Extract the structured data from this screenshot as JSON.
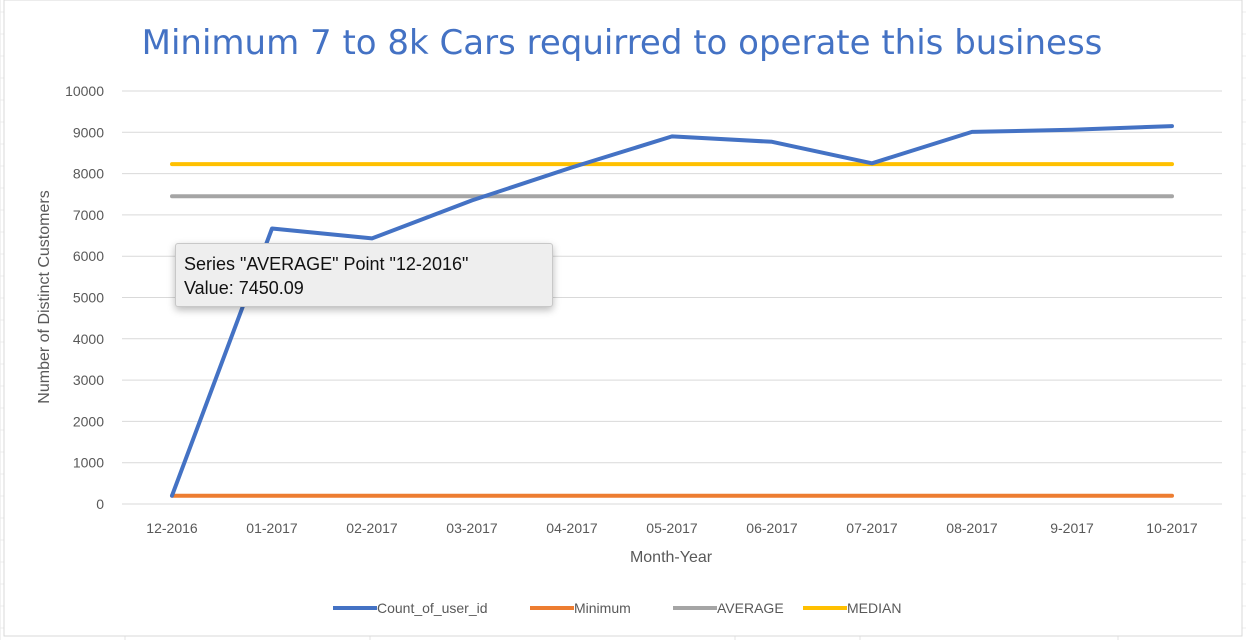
{
  "chart_data": {
    "type": "line",
    "title": "Minimum 7 to 8k Cars requirred to operate this business",
    "xlabel": "Month-Year",
    "ylabel": "Number of Distinct Customers",
    "categories": [
      "12-2016",
      "01-2017",
      "02-2017",
      "03-2017",
      "04-2017",
      "05-2017",
      "06-2017",
      "07-2017",
      "08-2017",
      "9-2017",
      "10-2017"
    ],
    "ylim": [
      0,
      10000
    ],
    "yticks": [
      "0",
      "1000",
      "2000",
      "3000",
      "4000",
      "5000",
      "6000",
      "7000",
      "8000",
      "9000",
      "10000"
    ],
    "grid": true,
    "legend_position": "bottom",
    "series": [
      {
        "name": "Count_of_user_id",
        "color": "#4472C4",
        "values": [
          200,
          6670,
          6430,
          7350,
          8150,
          8900,
          8770,
          8250,
          9010,
          9060,
          9150
        ]
      },
      {
        "name": "Minimum",
        "color": "#ED7D31",
        "values": [
          200,
          200,
          200,
          200,
          200,
          200,
          200,
          200,
          200,
          200,
          200
        ]
      },
      {
        "name": "AVERAGE",
        "color": "#A5A5A5",
        "values": [
          7450.09,
          7450.09,
          7450.09,
          7450.09,
          7450.09,
          7450.09,
          7450.09,
          7450.09,
          7450.09,
          7450.09,
          7450.09
        ]
      },
      {
        "name": "MEDIAN",
        "color": "#FFC000",
        "values": [
          8230,
          8230,
          8230,
          8230,
          8230,
          8230,
          8230,
          8230,
          8230,
          8230,
          8230
        ]
      }
    ]
  },
  "tooltip": {
    "line1": "Series \"AVERAGE\" Point \"12-2016\"",
    "line2": "Value: 7450.09"
  }
}
